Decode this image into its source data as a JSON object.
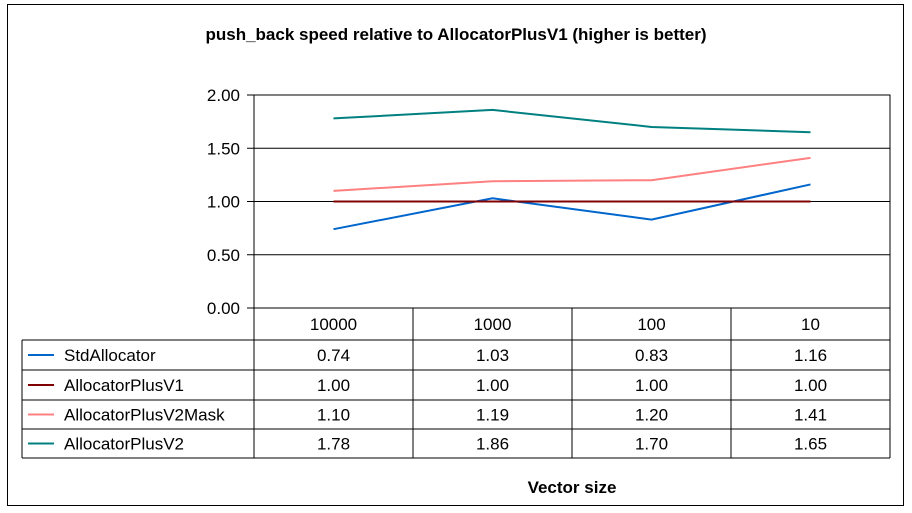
{
  "chart_data": {
    "type": "line",
    "title": "push_back speed relative to AllocatorPlusV1 (higher is better)",
    "xlabel": "Vector size",
    "ylabel": "",
    "categories": [
      "10000",
      "1000",
      "100",
      "10"
    ],
    "ylim": [
      0,
      2
    ],
    "yticks": [
      "0.00",
      "0.50",
      "1.00",
      "1.50",
      "2.00"
    ],
    "grid": true,
    "legend": "data-table-left",
    "series": [
      {
        "name": "StdAllocator",
        "color": "#0066CC",
        "values": [
          0.74,
          1.03,
          0.83,
          1.16
        ],
        "labels": [
          "0.74",
          "1.03",
          "0.83",
          "1.16"
        ]
      },
      {
        "name": "AllocatorPlusV1",
        "color": "#800000",
        "values": [
          1.0,
          1.0,
          1.0,
          1.0
        ],
        "labels": [
          "1.00",
          "1.00",
          "1.00",
          "1.00"
        ]
      },
      {
        "name": "AllocatorPlusV2Mask",
        "color": "#FF8080",
        "values": [
          1.1,
          1.19,
          1.2,
          1.41
        ],
        "labels": [
          "1.10",
          "1.19",
          "1.20",
          "1.41"
        ]
      },
      {
        "name": "AllocatorPlusV2",
        "color": "#008080",
        "values": [
          1.78,
          1.86,
          1.7,
          1.65
        ],
        "labels": [
          "1.78",
          "1.86",
          "1.70",
          "1.65"
        ]
      }
    ]
  }
}
